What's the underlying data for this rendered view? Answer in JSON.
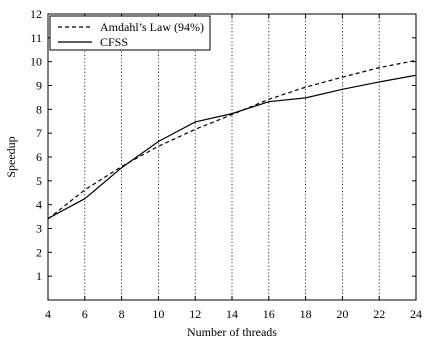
{
  "chart_data": {
    "type": "line",
    "title": "",
    "xlabel": "Number of threads",
    "ylabel": "Speedup",
    "xlim": [
      4,
      24
    ],
    "ylim": [
      0,
      12
    ],
    "xticks": [
      4,
      6,
      8,
      10,
      12,
      14,
      16,
      18,
      20,
      22,
      24
    ],
    "yticks": [
      1,
      2,
      3,
      4,
      5,
      6,
      7,
      8,
      9,
      10,
      11,
      12
    ],
    "grid": {
      "vertical": true,
      "horizontal": false,
      "style": "dotted"
    },
    "legend_position": "top-left",
    "series": [
      {
        "name": "Amdahl’s Law (94%)",
        "line_style": "dashed",
        "color": "#000000",
        "x": [
          4,
          6,
          8,
          10,
          12,
          14,
          16,
          18,
          20,
          22,
          24
        ],
        "y": [
          3.4,
          4.62,
          5.6,
          6.45,
          7.16,
          7.78,
          8.42,
          8.93,
          9.35,
          9.75,
          10.05
        ]
      },
      {
        "name": "CFSS",
        "line_style": "solid",
        "color": "#000000",
        "x": [
          4,
          6,
          8,
          10,
          12,
          14,
          16,
          18,
          20,
          22,
          24
        ],
        "y": [
          3.42,
          4.25,
          5.55,
          6.65,
          7.47,
          7.82,
          8.32,
          8.48,
          8.84,
          9.15,
          9.43
        ]
      }
    ]
  }
}
